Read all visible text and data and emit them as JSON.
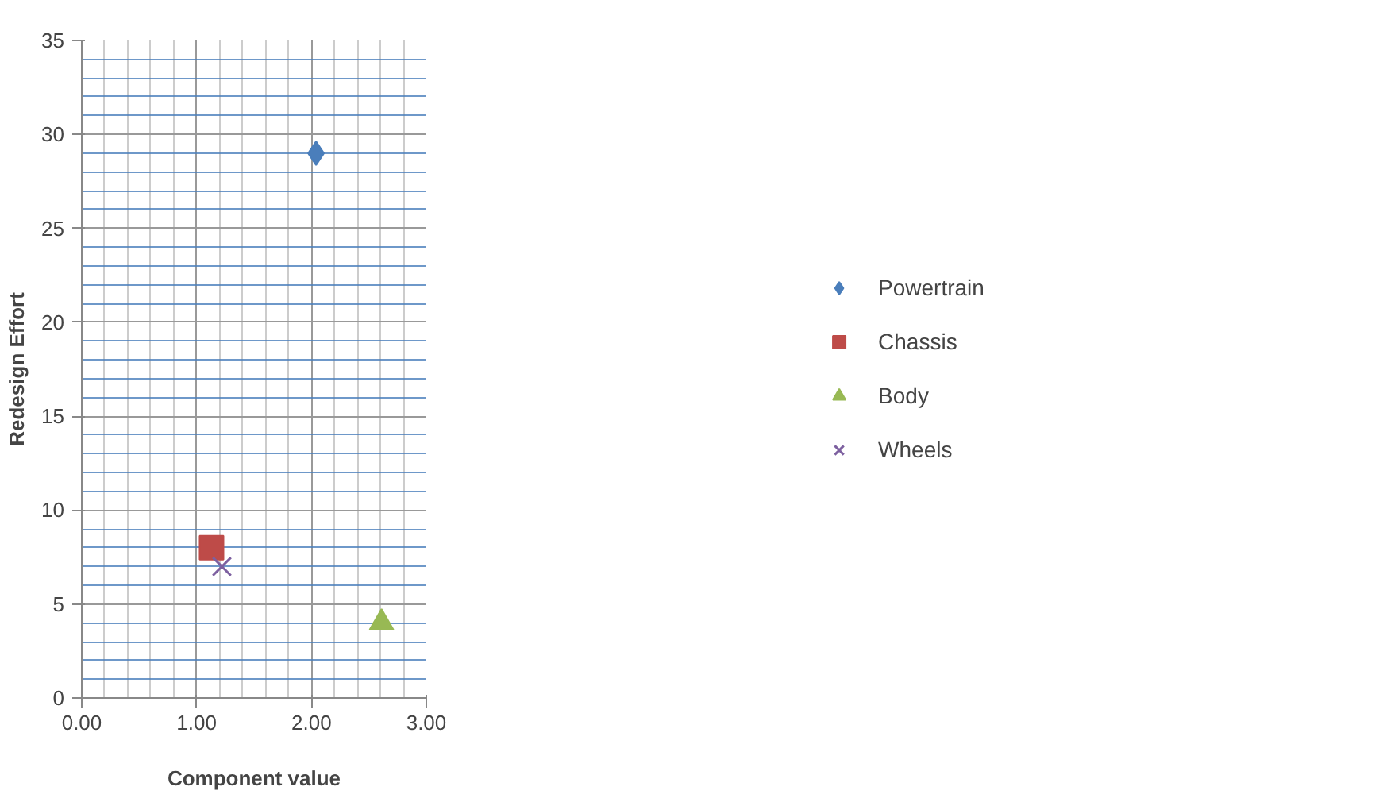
{
  "chart_data": {
    "type": "scatter",
    "xlabel": "Component value",
    "ylabel": "Redesign Effort",
    "xlim": [
      0,
      3
    ],
    "xticks": [
      {
        "value": 0,
        "label": "0.00"
      },
      {
        "value": 1,
        "label": "1.00"
      },
      {
        "value": 2,
        "label": "2.00"
      },
      {
        "value": 3,
        "label": "3.00"
      }
    ],
    "ylim": [
      0,
      35
    ],
    "yticks": [
      0,
      5,
      10,
      15,
      20,
      25,
      30,
      35
    ],
    "grid": true,
    "legend": "right",
    "series": [
      {
        "name": "Powertrain",
        "color": "#4a7ebb",
        "marker": "diamond",
        "x": [
          2.04
        ],
        "values": [
          29
        ]
      },
      {
        "name": "Chassis",
        "color": "#be4b48",
        "marker": "square",
        "x": [
          1.13
        ],
        "values": [
          8
        ]
      },
      {
        "name": "Body",
        "color": "#98b954",
        "marker": "triangle",
        "x": [
          2.61
        ],
        "values": [
          4
        ]
      },
      {
        "name": "Wheels",
        "color": "#7d60a0",
        "marker": "x",
        "x": [
          1.22
        ],
        "values": [
          7
        ]
      }
    ]
  }
}
